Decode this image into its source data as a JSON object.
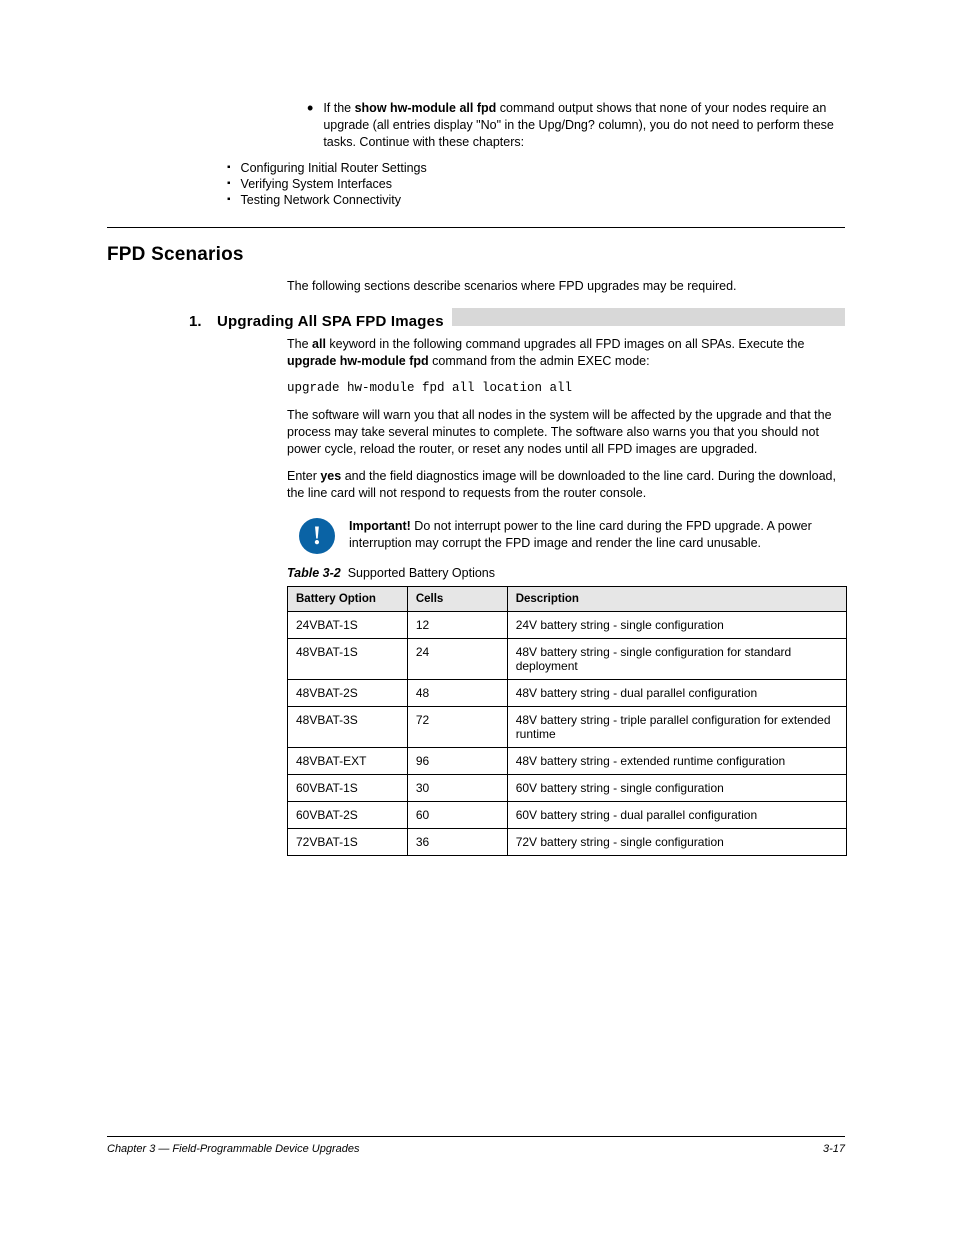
{
  "intro": {
    "lead_prefix": "If the ",
    "lead_cmd": "show hw-module all fpd",
    "lead_suffix": " command output shows that none of your nodes require an upgrade (all entries display \"No\" in the Upg/Dng? column), you do not need to perform these tasks. Continue with these chapters:",
    "subitems": [
      "Configuring Initial Router Settings",
      "Verifying System Interfaces",
      "Testing Network Connectivity"
    ]
  },
  "section_title": "FPD Scenarios",
  "section_intro": "The following sections describe scenarios where FPD upgrades may be required.",
  "scenario": {
    "num": "1.",
    "title": "Upgrading All SPA FPD Images",
    "p1_prefix": "The ",
    "p1_term": "all",
    "p1_middle": " keyword in the following command upgrades all FPD images on all SPAs. Execute the ",
    "p1_cmd": "upgrade hw-module fpd",
    "p1_suffix": " command from the admin EXEC mode:",
    "cmd_line": "upgrade hw-module fpd all location all",
    "p2": "The software will warn you that all nodes in the system will be affected by the upgrade and that the process may take several minutes to complete. The software also warns you that you should not power cycle, reload the router, or reset any nodes until all FPD images are upgraded.",
    "p3_prefix": "Enter ",
    "p3_term": "yes",
    "p3_suffix": " and the field diagnostics image will be downloaded to the line card. During the download, the line card will not respond to requests from the router console.",
    "imp_label": "Important!",
    "imp_text": " Do not interrupt power to the line card during the FPD upgrade. A power interruption may corrupt the FPD image and render the line card unusable."
  },
  "table": {
    "caption_label": "Table 3-2",
    "caption_text": "Supported Battery Options",
    "headers": [
      "Battery Option",
      "Cells",
      "Description"
    ],
    "rows": [
      [
        "24VBAT-1S",
        "12",
        "24V battery string - single configuration"
      ],
      [
        "48VBAT-1S",
        "24",
        "48V battery string - single configuration for standard deployment"
      ],
      [
        "48VBAT-2S",
        "48",
        "48V battery string - dual parallel configuration"
      ],
      [
        "48VBAT-3S",
        "72",
        "48V battery string - triple parallel configuration for extended runtime"
      ],
      [
        "48VBAT-EXT",
        "96",
        "48V battery string - extended runtime configuration"
      ],
      [
        "60VBAT-1S",
        "30",
        "60V battery string - single configuration"
      ],
      [
        "60VBAT-2S",
        "60",
        "60V battery string - dual parallel configuration"
      ],
      [
        "72VBAT-1S",
        "36",
        "72V battery string - single configuration"
      ]
    ]
  },
  "footer": {
    "left": "Chapter 3 — Field-Programmable Device Upgrades",
    "right": "3-17"
  }
}
